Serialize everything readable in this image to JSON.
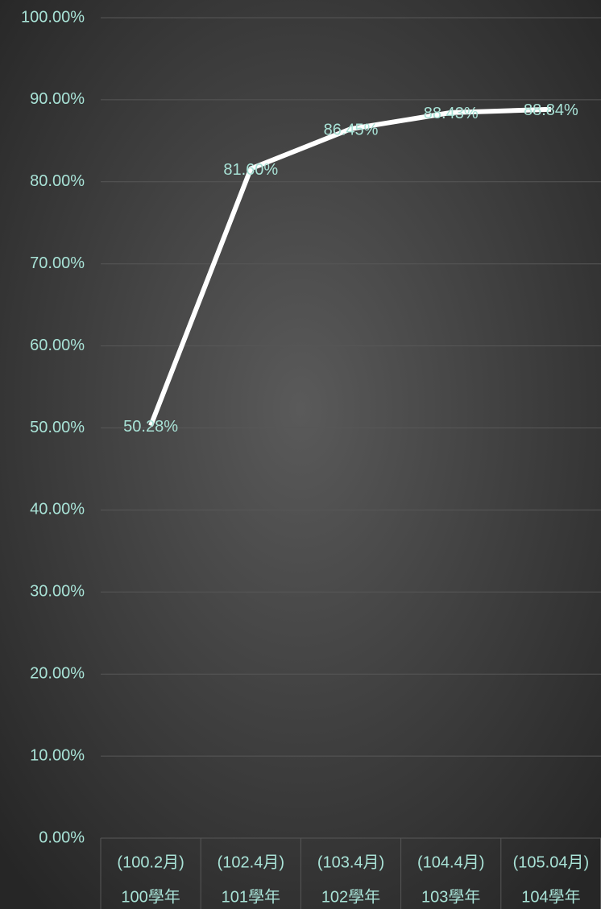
{
  "chart_data": {
    "type": "line",
    "categories": [
      [
        "(100.2月)",
        "100學年"
      ],
      [
        "(102.4月)",
        "101學年"
      ],
      [
        "(103.4月)",
        "102學年"
      ],
      [
        "(104.4月)",
        "103學年"
      ],
      [
        "(105.04月)",
        "104學年"
      ]
    ],
    "series": [
      {
        "color": "#ffffff",
        "values": [
          50.28,
          81.6,
          86.45,
          88.43,
          88.84
        ],
        "value_labels": [
          "50.28%",
          "81.60%",
          "86.45%",
          "88.43%",
          "88.84%"
        ]
      }
    ],
    "ylim": [
      0,
      100
    ],
    "yticks": [
      {
        "value": 0,
        "label": "0.00%"
      },
      {
        "value": 10,
        "label": "10.00%"
      },
      {
        "value": 20,
        "label": "20.00%"
      },
      {
        "value": 30,
        "label": "30.00%"
      },
      {
        "value": 40,
        "label": "40.00%"
      },
      {
        "value": 50,
        "label": "50.00%"
      },
      {
        "value": 60,
        "label": "60.00%"
      },
      {
        "value": 70,
        "label": "70.00%"
      },
      {
        "value": 80,
        "label": "80.00%"
      },
      {
        "value": 90,
        "label": "90.00%"
      },
      {
        "value": 100,
        "label": "100.00%"
      }
    ],
    "grid": true
  }
}
